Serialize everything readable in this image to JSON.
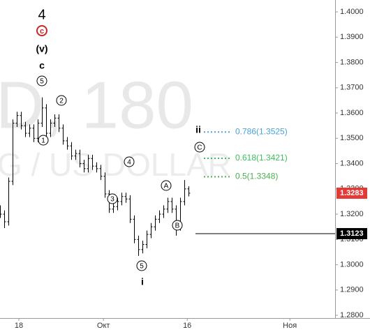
{
  "chart_data": {
    "type": "ohlc",
    "color": "#000000",
    "watermark": [
      "D, 180",
      "G / US DOLLAR"
    ],
    "x": [
      0,
      1,
      2,
      3,
      4,
      5,
      6,
      7,
      8,
      9,
      10,
      11,
      12,
      13,
      14,
      15,
      16,
      17,
      18,
      19,
      20,
      21,
      22,
      23,
      24,
      25,
      26,
      27,
      28,
      29,
      30,
      31,
      32,
      33,
      34,
      35,
      36,
      37,
      38,
      39,
      40,
      41,
      42,
      43,
      44,
      45
    ],
    "open": [
      1.322,
      1.32,
      1.317,
      1.333,
      1.356,
      1.359,
      1.355,
      1.352,
      1.354,
      1.35,
      1.356,
      1.362,
      1.352,
      1.356,
      1.358,
      1.354,
      1.349,
      1.347,
      1.343,
      1.344,
      1.34,
      1.338,
      1.342,
      1.339,
      1.338,
      1.335,
      1.328,
      1.322,
      1.323,
      1.325,
      1.327,
      1.326,
      1.318,
      1.31,
      1.306,
      1.308,
      1.312,
      1.315,
      1.318,
      1.32,
      1.322,
      1.325,
      1.322,
      1.315,
      1.325,
      1.33
    ],
    "high": [
      1.3235,
      1.3215,
      1.3345,
      1.3575,
      1.3605,
      1.3605,
      1.3565,
      1.3555,
      1.3555,
      1.3575,
      1.3662,
      1.3635,
      1.3575,
      1.3595,
      1.3595,
      1.3555,
      1.3505,
      1.3485,
      1.3455,
      1.3455,
      1.3415,
      1.3435,
      1.3435,
      1.3405,
      1.3395,
      1.3365,
      1.3295,
      1.3245,
      1.3265,
      1.3285,
      1.3285,
      1.3275,
      1.3195,
      1.3115,
      1.3095,
      1.3135,
      1.3165,
      1.3195,
      1.3215,
      1.3235,
      1.3265,
      1.3265,
      1.3235,
      1.3265,
      1.3335,
      1.331
    ],
    "low": [
      1.3185,
      1.3145,
      1.3155,
      1.3315,
      1.3545,
      1.3535,
      1.3505,
      1.3505,
      1.3485,
      1.3485,
      1.3545,
      1.3505,
      1.3505,
      1.3545,
      1.3525,
      1.3475,
      1.3455,
      1.3415,
      1.3415,
      1.3385,
      1.3365,
      1.3365,
      1.3375,
      1.3365,
      1.3335,
      1.3265,
      1.3205,
      1.3205,
      1.3215,
      1.3235,
      1.3245,
      1.3165,
      1.3085,
      1.3035,
      1.3045,
      1.3065,
      1.3105,
      1.3135,
      1.3165,
      1.3185,
      1.3205,
      1.3205,
      1.3115,
      1.3135,
      1.3235,
      1.327
    ],
    "close": [
      1.32,
      1.317,
      1.333,
      1.356,
      1.359,
      1.355,
      1.352,
      1.354,
      1.35,
      1.356,
      1.362,
      1.352,
      1.356,
      1.358,
      1.354,
      1.349,
      1.347,
      1.343,
      1.344,
      1.34,
      1.338,
      1.342,
      1.339,
      1.338,
      1.335,
      1.328,
      1.322,
      1.323,
      1.325,
      1.327,
      1.326,
      1.318,
      1.31,
      1.306,
      1.308,
      1.312,
      1.315,
      1.318,
      1.32,
      1.322,
      1.325,
      1.322,
      1.315,
      1.325,
      1.33,
      1.3283
    ],
    "xlim": [
      0,
      80
    ],
    "xticks": [
      {
        "value": 4.5,
        "label": "18"
      },
      {
        "value": 24.7,
        "label": "Окт"
      },
      {
        "value": 44.7,
        "label": "16"
      },
      {
        "value": 69.2,
        "label": "Ноя"
      }
    ],
    "ylim": [
      1.2734,
      1.4047
    ],
    "yticks": [
      {
        "value": 1.28,
        "label": "1.2800"
      },
      {
        "value": 1.29,
        "label": "1.2900"
      },
      {
        "value": 1.3,
        "label": "1.3000"
      },
      {
        "value": 1.31,
        "label": "1.3100"
      },
      {
        "value": 1.32,
        "label": "1.3200"
      },
      {
        "value": 1.33,
        "label": "1.3300"
      },
      {
        "value": 1.34,
        "label": "1.3400"
      },
      {
        "value": 1.35,
        "label": "1.3500"
      },
      {
        "value": 1.36,
        "label": "1.3600"
      },
      {
        "value": 1.37,
        "label": "1.3700"
      },
      {
        "value": 1.38,
        "label": "1.3800"
      },
      {
        "value": 1.39,
        "label": "1.3900"
      },
      {
        "value": 1.4,
        "label": "1.4000"
      }
    ],
    "annotations": [
      "4",
      "c",
      "(v)",
      "c",
      "5",
      "1",
      "2",
      "3",
      "4",
      "5",
      "i",
      "A",
      "B",
      "C",
      "ii"
    ],
    "fib_levels": [
      {
        "label": "0.786(1.3525)",
        "value": 1.3525,
        "color": "#4aa3d8"
      },
      {
        "label": "0.618(1.3421)",
        "value": 1.3421,
        "color": "#3cbf5b"
      },
      {
        "label": "0.5(1.3348)",
        "value": 1.3348,
        "color": "#4caf50"
      }
    ],
    "price_lines": [
      {
        "value": 1.3123,
        "label": "1.3123",
        "color": "#000000"
      },
      {
        "value": 1.3283,
        "label": "1.3283",
        "color": "#e53935"
      }
    ]
  }
}
